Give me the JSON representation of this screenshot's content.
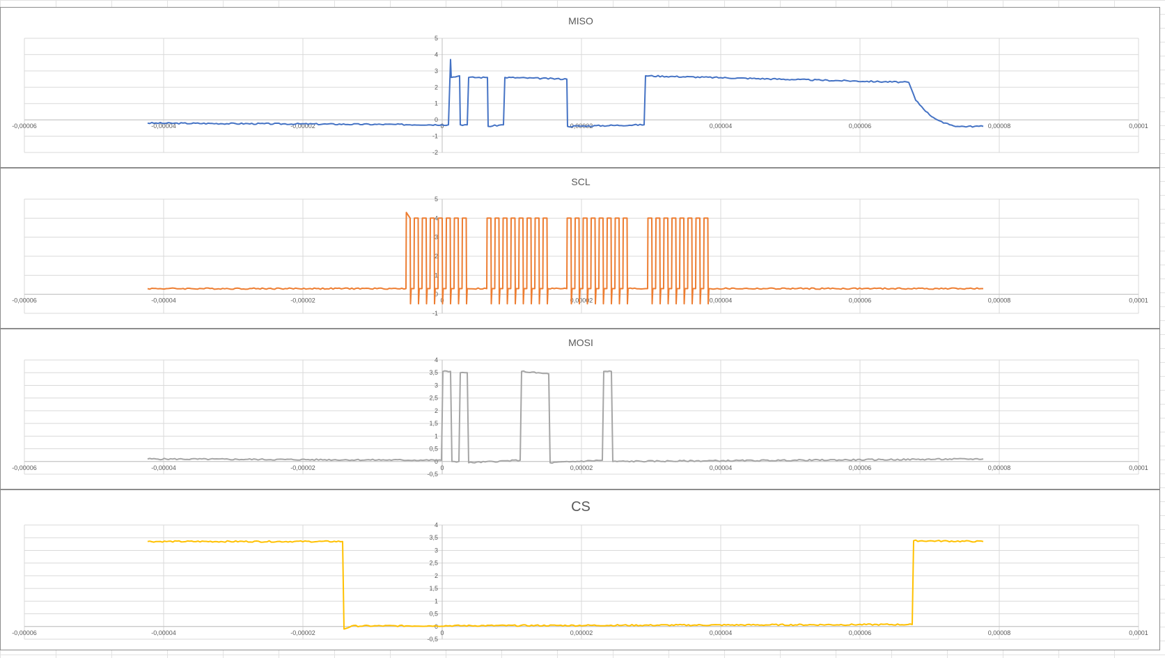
{
  "chart_data": [
    {
      "type": "line",
      "title": "MISO",
      "color": "#4472c4",
      "xlim": [
        -6e-05,
        0.0001
      ],
      "xticks": [
        -6e-05,
        -4e-05,
        -2e-05,
        0,
        2e-05,
        4e-05,
        6e-05,
        8e-05,
        0.0001
      ],
      "xtick_labels": [
        "-0,00006",
        "-0,00004",
        "-0,00002",
        "0",
        "0,00002",
        "0,00004",
        "0,00006",
        "0,00008",
        "0,0001"
      ],
      "ylim": [
        -2,
        5
      ],
      "yticks": [
        -2,
        -1,
        0,
        1,
        2,
        3,
        4,
        5
      ],
      "ytick_labels": [
        "-2",
        "-1",
        "0",
        "1",
        "2",
        "3",
        "4",
        "5"
      ],
      "grid": true,
      "series": [
        {
          "x": [
            -4.23e-05,
            -1e-07,
            9e-07,
            1.2e-06,
            1.3e-06,
            2.5e-06,
            2.6e-06,
            3.6e-06,
            3.8e-06,
            6.5e-06,
            6.6e-06,
            8.8e-06,
            9e-06,
            1.79e-05,
            1.8e-05,
            2.9e-05,
            2.92e-05,
            6.7e-05,
            6.8e-05,
            7e-05,
            7.2e-05,
            7.4e-05,
            7.77e-05
          ],
          "y": [
            -0.2,
            -0.3,
            -0.3,
            3.7,
            2.6,
            2.7,
            -0.3,
            -0.3,
            2.6,
            2.6,
            -0.4,
            -0.3,
            2.6,
            2.5,
            -0.4,
            -0.3,
            2.7,
            2.3,
            1.2,
            0.3,
            -0.2,
            -0.4,
            -0.4
          ]
        }
      ]
    },
    {
      "type": "line",
      "title": "SCL",
      "color": "#ed7d31",
      "xlim": [
        -6e-05,
        0.0001
      ],
      "xticks": [
        -6e-05,
        -4e-05,
        -2e-05,
        0,
        2e-05,
        4e-05,
        6e-05,
        8e-05,
        0.0001
      ],
      "xtick_labels": [
        "-0,00006",
        "-0,00004",
        "-0,00002",
        "0",
        "0,00002",
        "0,00004",
        "0,00006",
        "0,00008",
        "0,0001"
      ],
      "ylim": [
        -1,
        5
      ],
      "yticks": [
        -1,
        0,
        1,
        2,
        3,
        4,
        5
      ],
      "ytick_labels": [
        "-1",
        "0",
        "1",
        "2",
        "3",
        "4",
        "5"
      ],
      "grid": true,
      "low_level": 0.3,
      "high_level": 4.0,
      "pulse_width": 6e-07,
      "pulse_period": 1.15e-06,
      "pulse_bursts": [
        {
          "start": -5.2e-06,
          "count": 8
        },
        {
          "start": 6.4e-06,
          "count": 8
        },
        {
          "start": 1.79e-05,
          "count": 8
        },
        {
          "start": 2.95e-05,
          "count": 8
        }
      ],
      "series": [
        {
          "x": [
            -4.23e-05,
            7.77e-05
          ],
          "y": [
            0.3,
            0.3
          ]
        }
      ]
    },
    {
      "type": "line",
      "title": "MOSI",
      "color": "#a5a5a5",
      "xlim": [
        -6e-05,
        0.0001
      ],
      "xticks": [
        -6e-05,
        -4e-05,
        -2e-05,
        0,
        2e-05,
        4e-05,
        6e-05,
        8e-05,
        0.0001
      ],
      "xtick_labels": [
        "-0,00006",
        "-0,00004",
        "-0,00002",
        "0",
        "0,00002",
        "0,00004",
        "0,00006",
        "0,00008",
        "0,0001"
      ],
      "ylim": [
        -0.5,
        4
      ],
      "yticks": [
        -0.5,
        0,
        0.5,
        1,
        1.5,
        2,
        2.5,
        3,
        3.5,
        4
      ],
      "ytick_labels": [
        "-0,5",
        "0",
        "0,5",
        "1",
        "1,5",
        "2",
        "2,5",
        "3",
        "3,5",
        "4"
      ],
      "grid": true,
      "series": [
        {
          "x": [
            -4.23e-05,
            -1e-07,
            1e-07,
            1.2e-06,
            1.4e-06,
            2.4e-06,
            2.6e-06,
            3.6e-06,
            3.8e-06,
            1.12e-05,
            1.14e-05,
            1.53e-05,
            1.55e-05,
            2.3e-05,
            2.32e-05,
            2.43e-05,
            2.45e-05,
            7.77e-05
          ],
          "y": [
            0.1,
            0.05,
            3.55,
            3.55,
            0.0,
            0.0,
            3.5,
            3.5,
            -0.05,
            0.05,
            3.55,
            3.45,
            -0.05,
            0.05,
            3.55,
            3.55,
            0.0,
            0.1
          ]
        }
      ]
    },
    {
      "type": "line",
      "title": "CS",
      "color": "#ffc000",
      "xlim": [
        -6e-05,
        0.0001
      ],
      "xticks": [
        -6e-05,
        -4e-05,
        -2e-05,
        0,
        2e-05,
        4e-05,
        6e-05,
        8e-05,
        0.0001
      ],
      "xtick_labels": [
        "-0,00006",
        "-0,00004",
        "-0,00002",
        "0",
        "0,00002",
        "0,00004",
        "0,00006",
        "0,00008",
        "0,0001"
      ],
      "ylim": [
        -0.5,
        4
      ],
      "yticks": [
        -0.5,
        0,
        0.5,
        1,
        1.5,
        2,
        2.5,
        3,
        3.5,
        4
      ],
      "ytick_labels": [
        "-0,5",
        "0",
        "0,5",
        "1",
        "1,5",
        "2",
        "2,5",
        "3",
        "3,5",
        "4"
      ],
      "grid": true,
      "series": [
        {
          "x": [
            -4.23e-05,
            -1.43e-05,
            -1.41e-05,
            -1.3e-05,
            6.75e-05,
            6.77e-05,
            7.77e-05
          ],
          "y": [
            3.35,
            3.35,
            -0.1,
            0.02,
            0.08,
            3.38,
            3.35
          ]
        }
      ]
    }
  ]
}
